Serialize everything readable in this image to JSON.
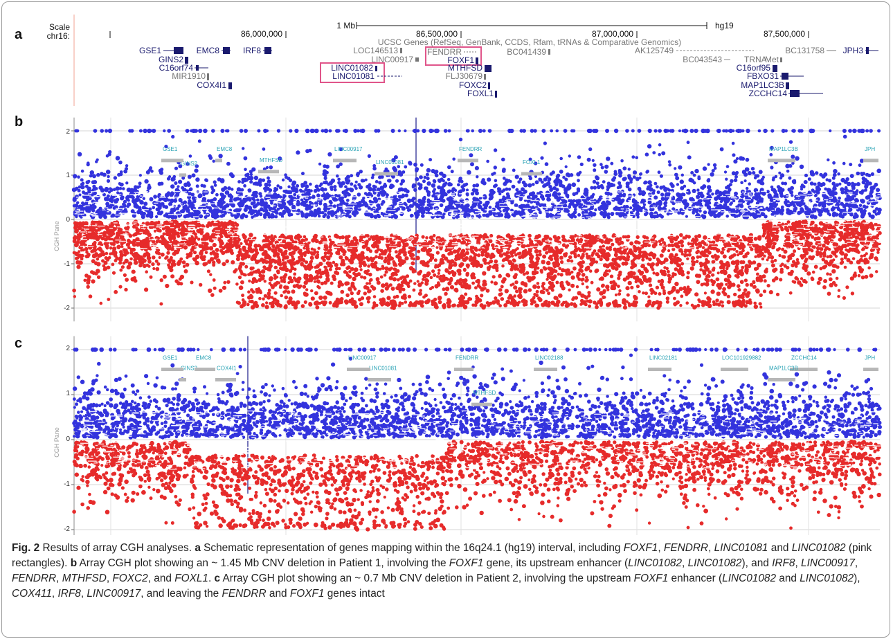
{
  "panel_a": {
    "label": "a",
    "scale_label": "Scale",
    "chr_label": "chr16:",
    "scale_bar_label": "1 Mb",
    "assembly": "hg19",
    "coords": [
      "86,000,000",
      "86,500,000",
      "87,000,000",
      "87,500,000"
    ],
    "track_title": "UCSC Genes (RefSeq, GenBank, CCDS, Rfam, tRNAs & Comparative Genomics)",
    "genes": [
      "GSE1",
      "EMC8",
      "IRF8",
      "GINS2",
      "C16orf74",
      "MIR1910",
      "COX4I1",
      "LOC146513",
      "LINC00917",
      "LINC01082",
      "LINC01081",
      "FENDRR",
      "FOXF1",
      "MTHFSD",
      "FLJ30679",
      "FOXC2",
      "FOXL1",
      "BC041439",
      "AK125749",
      "BC043543",
      "TRNA_Met",
      "C16orf95",
      "FBXO31",
      "MAP1LC3B",
      "ZCCHC14",
      "BC131758",
      "JPH3"
    ],
    "highlight_color": "#e0558a"
  },
  "panel_b": {
    "label": "b",
    "y_axis_label": "CGH Pane",
    "y_ticks": [
      "2",
      "1",
      "0",
      "-1",
      "-2"
    ],
    "gene_labels": [
      "GINS2",
      "GSE1",
      "EMC8",
      "MTHFSD",
      "LINC01081",
      "LINC00917",
      "FENDRR",
      "FOXL1",
      "MAP1LC3B",
      "JPH"
    ]
  },
  "panel_c": {
    "label": "c",
    "y_axis_label": "CGH Pane",
    "y_ticks": [
      "2",
      "1",
      "0",
      "-1",
      "-2"
    ],
    "gene_labels": [
      "GINS2",
      "GSE1",
      "EMC8",
      "COX4I1",
      "LINC01081",
      "LINC00917",
      "FENDRR",
      "MTHFSD",
      "LINC02188",
      "LINC02181",
      "LOC101929882",
      "ZCCHC14",
      "MAP1LC3B",
      "JPH"
    ]
  },
  "colors": {
    "gain": "#3333dd",
    "loss": "#e62b2b"
  },
  "caption": {
    "fig_label": "Fig. 2",
    "title": " Results of array CGH analyses. ",
    "a_label": "a",
    "a_text": " Schematic representation of genes mapping within the 16q24.1 (hg19) interval, including ",
    "a_g1": "FOXF1",
    "a_sep1": ", ",
    "a_g2": "FENDRR",
    "a_sep2": ", ",
    "a_g3": "LINC01081",
    "a_sep3": " and ",
    "a_g4": "LINC01082",
    "a_end": " (pink rectangles). ",
    "b_label": "b",
    "b_text1": " Array CGH plot showing an ~ 1.45 Mb CNV deletion in Patient 1, involving the ",
    "b_g1": "FOXF1",
    "b_text2": " gene, its upstream enhancer (",
    "b_g2": "LINC01082",
    "b_sep1": ", ",
    "b_g3": "LINC01082",
    "b_text3": "), and ",
    "b_g4": "IRF8",
    "b_sep2": ", ",
    "b_g5": "LINC00917",
    "b_sep3": ", ",
    "b_g6": "FENDRR",
    "b_sep4": ", ",
    "b_g7": "MTHFSD",
    "b_sep5": ", ",
    "b_g8": "FOXC2",
    "b_sep6": ", and ",
    "b_g9": "FOXL1",
    "b_end": ". ",
    "c_label": "c",
    "c_text1": " Array CGH plot showing an ~ 0.7 Mb CNV deletion in Patient 2, involving the upstream ",
    "c_g1": "FOXF1",
    "c_text2": " enhancer (",
    "c_g2": "LINC01082",
    "c_sep1": " and ",
    "c_g3": "LINC01082",
    "c_text3": "), ",
    "c_g4": "COX411",
    "c_sep2": ", ",
    "c_g5": "IRF8",
    "c_sep3": ", ",
    "c_g6": "LINC00917",
    "c_text4": ", and leaving the ",
    "c_g7": "FENDRR",
    "c_sep4": " and ",
    "c_g8": "FOXF1",
    "c_end": " genes intact"
  }
}
